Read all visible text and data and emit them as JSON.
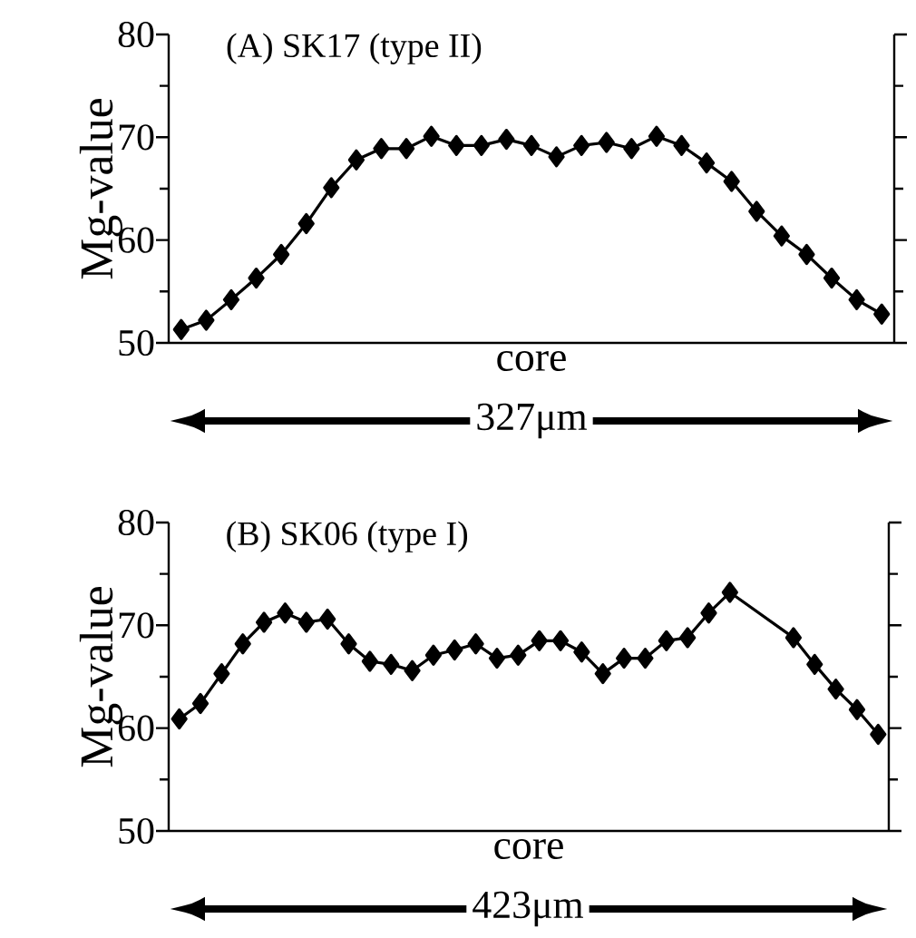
{
  "chart_data": [
    {
      "type": "line",
      "title": "(A)  SK17 (type II)",
      "xlabel": "core",
      "ylabel": "Mg-value",
      "annotations": [
        "327μm"
      ],
      "marker": "diamond",
      "line_style": "solid",
      "tick_labels": "y",
      "categories": [
        null,
        null,
        null,
        null,
        null,
        null,
        null,
        null,
        null,
        null,
        null,
        null,
        null,
        null,
        null,
        null,
        null,
        null,
        null,
        null,
        null,
        null,
        null,
        null,
        null,
        null,
        null,
        null,
        null
      ],
      "ylim": [
        50,
        80
      ],
      "yticks": [
        50,
        {
          "value": 55,
          "label": null
        },
        60,
        {
          "value": 65,
          "label": null
        },
        70,
        {
          "value": 75,
          "label": null
        },
        80
      ],
      "series": [
        {
          "color": "#000000",
          "values": [
            51.3,
            52.2,
            54.2,
            56.3,
            58.6,
            61.6,
            65.1,
            67.8,
            68.9,
            68.9,
            70.1,
            69.2,
            69.2,
            69.8,
            69.2,
            68.1,
            69.2,
            69.5,
            68.9,
            70.1,
            69.2,
            67.5,
            65.7,
            62.8,
            60.4,
            58.6,
            56.3,
            54.2,
            52.8
          ]
        }
      ]
    },
    {
      "type": "line",
      "title": "(B)  SK06 (type I)",
      "xlabel": "core",
      "ylabel": "Mg-value",
      "annotations": [
        "423μm"
      ],
      "marker": "diamond",
      "line_style": "solid",
      "tick_labels": "y",
      "categories": [
        null,
        null,
        null,
        null,
        null,
        null,
        null,
        null,
        null,
        null,
        null,
        null,
        null,
        null,
        null,
        null,
        null,
        null,
        null,
        null,
        null,
        null,
        null,
        null,
        null,
        null,
        null,
        null,
        null,
        null,
        null,
        null,
        null,
        null
      ],
      "ylim": [
        50,
        80
      ],
      "yticks": [
        50,
        {
          "value": 55,
          "label": null
        },
        60,
        {
          "value": 65,
          "label": null
        },
        70,
        {
          "value": 75,
          "label": null
        },
        80
      ],
      "series": [
        {
          "color": "#000000",
          "values": [
            60.9,
            62.4,
            65.3,
            68.2,
            70.3,
            71.2,
            70.3,
            70.6,
            68.2,
            66.5,
            66.2,
            65.6,
            67.1,
            67.6,
            68.2,
            66.8,
            67.1,
            68.5,
            68.5,
            67.4,
            65.3,
            66.8,
            66.8,
            68.5,
            68.8,
            71.2,
            73.2,
            null,
            null,
            68.8,
            66.2,
            63.8,
            61.8,
            59.4
          ]
        }
      ]
    }
  ]
}
